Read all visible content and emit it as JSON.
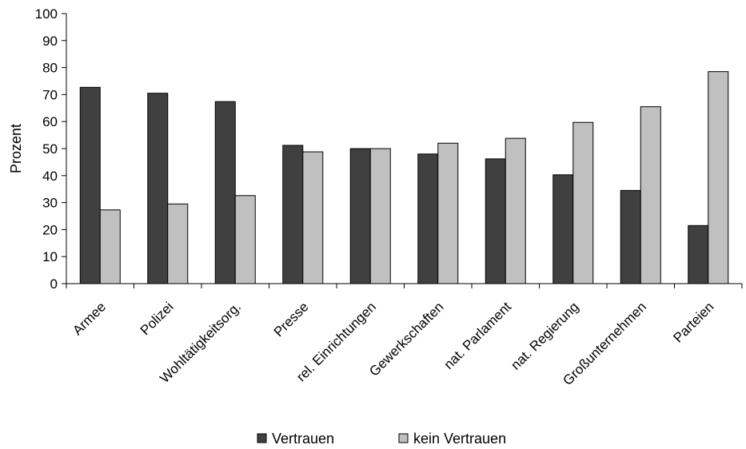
{
  "chart_data": {
    "type": "bar",
    "categories": [
      "Armee",
      "Polizei",
      "Wohltätigkeitsorg.",
      "Presse",
      "rel. Einrichtungen",
      "Gewerkschaften",
      "nat. Parlament",
      "nat. Regierung",
      "Großunternehmen",
      "Parteien"
    ],
    "series": [
      {
        "name": "Vertrauen",
        "values": [
          72.7,
          70.5,
          67.4,
          51.2,
          50.0,
          48.0,
          46.2,
          40.3,
          34.5,
          21.5
        ],
        "color": "#404040"
      },
      {
        "name": "kein Vertrauen",
        "values": [
          27.3,
          29.5,
          32.6,
          48.8,
          50.0,
          52.0,
          53.8,
          59.7,
          65.5,
          78.5
        ],
        "color": "#c0c0c0"
      }
    ],
    "title": "",
    "xlabel": "",
    "ylabel": "Prozent",
    "ylim": [
      0,
      100
    ],
    "yticks": [
      0,
      10,
      20,
      30,
      40,
      50,
      60,
      70,
      80,
      90,
      100
    ],
    "grid": false,
    "legend_position": "bottom"
  }
}
